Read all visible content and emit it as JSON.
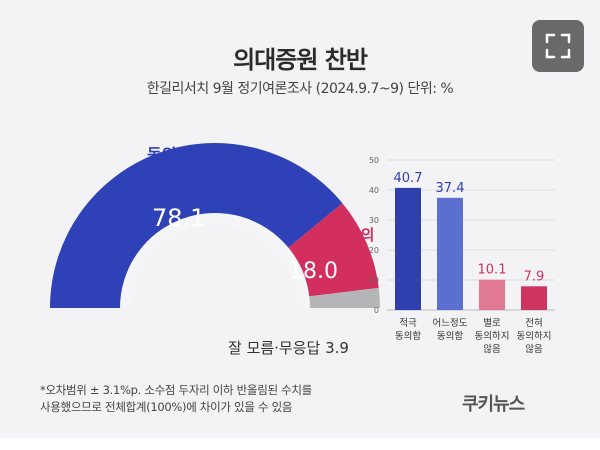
{
  "header": {
    "title": "의대증원 찬반",
    "subtitle": "한길리서치 9월 정기여론조사 (2024.9.7~9) 단위: %"
  },
  "controls": {
    "expand_icon": "fullscreen-expand-icon"
  },
  "chart_data": [
    {
      "type": "pie",
      "style": "half-donut",
      "slices": [
        {
          "name": "동의",
          "value": 78.1,
          "color": "#2f41b7"
        },
        {
          "name": "비동의",
          "value": 18.0,
          "color": "#d22f5f"
        },
        {
          "name": "잘 모름·무응답",
          "value": 3.9,
          "color": "#b5b5b8"
        }
      ],
      "labels": {
        "agree": "동의",
        "agree_value": "78.1",
        "disagree": "비동의",
        "disagree_value": "18.0",
        "unknown": "잘 모름·무응답 3.9"
      }
    },
    {
      "type": "bar",
      "categories": [
        [
          "적극",
          "동의함"
        ],
        [
          "어느정도",
          "동의함"
        ],
        [
          "별로",
          "동의하지",
          "않음"
        ],
        [
          "전혀",
          "동의하지",
          "않음"
        ]
      ],
      "values": [
        40.7,
        37.4,
        10.1,
        7.9
      ],
      "value_labels": [
        "40.7",
        "37.4",
        "10.1",
        "7.9"
      ],
      "colors": [
        "#2f3fae",
        "#5a6fd0",
        "#e07a93",
        "#cf3360"
      ],
      "label_colors": [
        "#2f3fae",
        "#2f3fae",
        "#cf3360",
        "#cf3360"
      ],
      "ylim": [
        0,
        50
      ],
      "yticks": [
        "0",
        "10",
        "20",
        "30",
        "40",
        "50"
      ],
      "grid": true
    }
  ],
  "footer": {
    "note_line1": "*오차범위 ± 3.1%p. 소수점 두자리 이하 반올림된 수치를",
    "note_line2": "사용했으므로 전체합계(100%)에 차이가 있을 수 있음",
    "logo": "쿠키뉴스"
  }
}
